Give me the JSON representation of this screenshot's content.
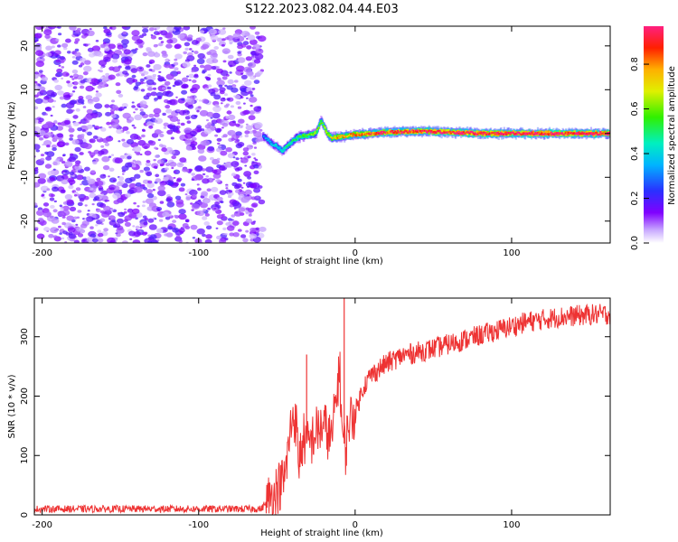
{
  "figure": {
    "title": "S122.2023.082.04.44.E03"
  },
  "chart_data": [
    {
      "type": "heatmap",
      "xlabel": "Height of straight line (km)",
      "ylabel": "Frequency (Hz)",
      "xlim": [
        -205,
        163
      ],
      "ylim": [
        -25,
        24.5
      ],
      "xticks": [
        -200,
        -100,
        0,
        100
      ],
      "yticks": [
        -20,
        -10,
        0,
        10,
        20
      ],
      "colorbar": {
        "label": "Normalized spectral amplitude",
        "ticks": [
          0.0,
          0.2,
          0.4,
          0.6,
          0.8
        ],
        "range": [
          0,
          0.97
        ],
        "colormap": "rainbow (white-purple-blue-cyan-green-yellow-red-pink)"
      },
      "noise_region_x": [
        -205,
        -59
      ],
      "ridge": {
        "x": [
          -59,
          -56,
          -53,
          -50,
          -47,
          -44,
          -41,
          -38,
          -35,
          -30,
          -25,
          -22,
          -20,
          -18,
          -15,
          -10,
          0,
          10,
          20,
          40,
          60,
          80,
          100,
          120,
          140,
          163
        ],
        "freq": [
          -0.5,
          -1.5,
          -2.5,
          -3.0,
          -4.0,
          -3.0,
          -2.0,
          -1.2,
          -0.6,
          -0.4,
          0.2,
          3.0,
          1.5,
          0.0,
          -1.0,
          -0.8,
          -0.2,
          0.0,
          0.3,
          0.5,
          0.3,
          0.0,
          0.0,
          0.0,
          0.0,
          0.0
        ],
        "amplitude": [
          0.3,
          0.35,
          0.35,
          0.4,
          0.45,
          0.45,
          0.5,
          0.5,
          0.55,
          0.6,
          0.6,
          0.5,
          0.6,
          0.65,
          0.7,
          0.75,
          0.8,
          0.85,
          0.9,
          0.92,
          0.94,
          0.95,
          0.95,
          0.95,
          0.95,
          0.95
        ]
      }
    },
    {
      "type": "line",
      "xlabel": "Height of straight line (km)",
      "ylabel": "SNR (10 * v/v)",
      "xlim": [
        -205,
        163
      ],
      "ylim": [
        0,
        365
      ],
      "xticks": [
        -200,
        -100,
        0,
        100
      ],
      "yticks": [
        0,
        100,
        200,
        300
      ],
      "color": "#ee3333",
      "series": [
        {
          "x": [
            -205,
            -150,
            -100,
            -60,
            -45,
            -40,
            -38,
            -36,
            -33,
            -30,
            -25,
            -20,
            -15,
            -12,
            -10,
            -8,
            -6,
            -4,
            0,
            5,
            10,
            20,
            30,
            50,
            70,
            90,
            110,
            130,
            150,
            163
          ],
          "values": [
            10,
            10,
            10,
            10,
            60,
            170,
            160,
            90,
            130,
            115,
            140,
            150,
            125,
            200,
            250,
            130,
            110,
            160,
            170,
            215,
            235,
            255,
            268,
            280,
            295,
            310,
            325,
            333,
            337,
            338
          ]
        }
      ],
      "spikes": [
        {
          "x": -31,
          "value": 270
        },
        {
          "x": -7,
          "value": 365
        }
      ]
    }
  ]
}
